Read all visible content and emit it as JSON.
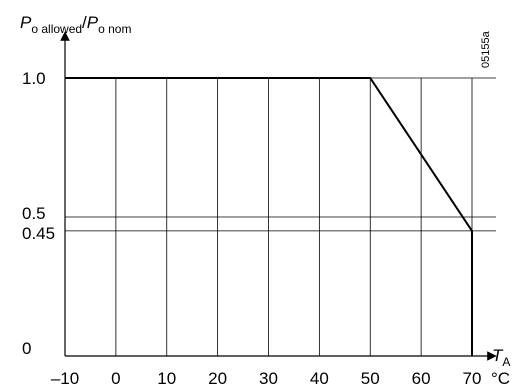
{
  "chart_data": {
    "type": "line",
    "ylabel": {
      "p1": "P",
      "sub1": "o allowed",
      "slash": "/",
      "p2": "P",
      "sub2": "o nom"
    },
    "xlabel": {
      "main": "T",
      "sub": "A"
    },
    "x_unit": "°C",
    "figure_code": "05155a",
    "xlim": [
      -10,
      70
    ],
    "ylim": [
      0,
      1.0
    ],
    "x_ticks": [
      -10,
      0,
      10,
      20,
      30,
      40,
      50,
      60,
      70
    ],
    "x_tick_labels": [
      "–10",
      "0",
      "10",
      "20",
      "30",
      "40",
      "50",
      "60",
      "70"
    ],
    "y_ticks": [
      0,
      0.45,
      0.5,
      1.0
    ],
    "y_tick_labels": [
      "0",
      "0.45",
      "0.5",
      "1.0"
    ],
    "grid": true,
    "series": [
      {
        "x": [
          -10,
          50,
          70,
          70
        ],
        "y": [
          1.0,
          1.0,
          0.45,
          0
        ]
      }
    ]
  }
}
